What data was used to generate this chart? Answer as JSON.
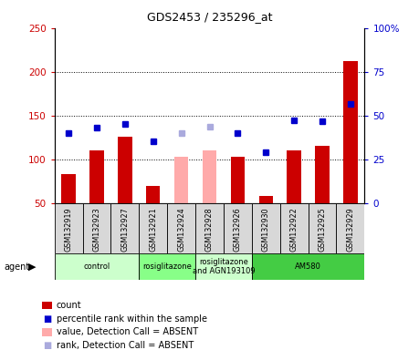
{
  "title": "GDS2453 / 235296_at",
  "samples": [
    "GSM132919",
    "GSM132923",
    "GSM132927",
    "GSM132921",
    "GSM132924",
    "GSM132928",
    "GSM132926",
    "GSM132930",
    "GSM132922",
    "GSM132925",
    "GSM132929"
  ],
  "count_values": [
    83,
    110,
    126,
    70,
    null,
    null,
    103,
    58,
    110,
    115,
    212
  ],
  "count_absent": [
    null,
    null,
    null,
    null,
    103,
    110,
    null,
    null,
    null,
    null,
    null
  ],
  "rank_values": [
    130,
    136,
    140,
    121,
    null,
    null,
    130,
    108,
    145,
    143,
    163
  ],
  "rank_absent": [
    null,
    null,
    null,
    null,
    130,
    137,
    null,
    null,
    null,
    null,
    null
  ],
  "groups": [
    {
      "label": "control",
      "start": 0,
      "end": 3,
      "color": "#ccffcc"
    },
    {
      "label": "rosiglitazone",
      "start": 3,
      "end": 5,
      "color": "#88ff88"
    },
    {
      "label": "rosiglitazone\nand AGN193109",
      "start": 5,
      "end": 7,
      "color": "#ccffcc"
    },
    {
      "label": "AM580",
      "start": 7,
      "end": 11,
      "color": "#44cc44"
    }
  ],
  "ylim_left": [
    50,
    250
  ],
  "ylim_right": [
    0,
    100
  ],
  "yticks_left": [
    50,
    100,
    150,
    200,
    250
  ],
  "yticks_right": [
    0,
    25,
    50,
    75,
    100
  ],
  "ytick_labels_right": [
    "0",
    "25",
    "50",
    "75",
    "100%"
  ],
  "color_count": "#cc0000",
  "color_rank": "#0000cc",
  "color_absent_count": "#ffaaaa",
  "color_absent_rank": "#aaaadd",
  "bar_width": 0.5,
  "marker_size": 5,
  "bg_color": "#ffffff",
  "legend_items": [
    {
      "label": "count",
      "color": "#cc0000",
      "type": "bar"
    },
    {
      "label": "percentile rank within the sample",
      "color": "#0000cc",
      "type": "square"
    },
    {
      "label": "value, Detection Call = ABSENT",
      "color": "#ffaaaa",
      "type": "bar"
    },
    {
      "label": "rank, Detection Call = ABSENT",
      "color": "#aaaadd",
      "type": "square"
    }
  ]
}
